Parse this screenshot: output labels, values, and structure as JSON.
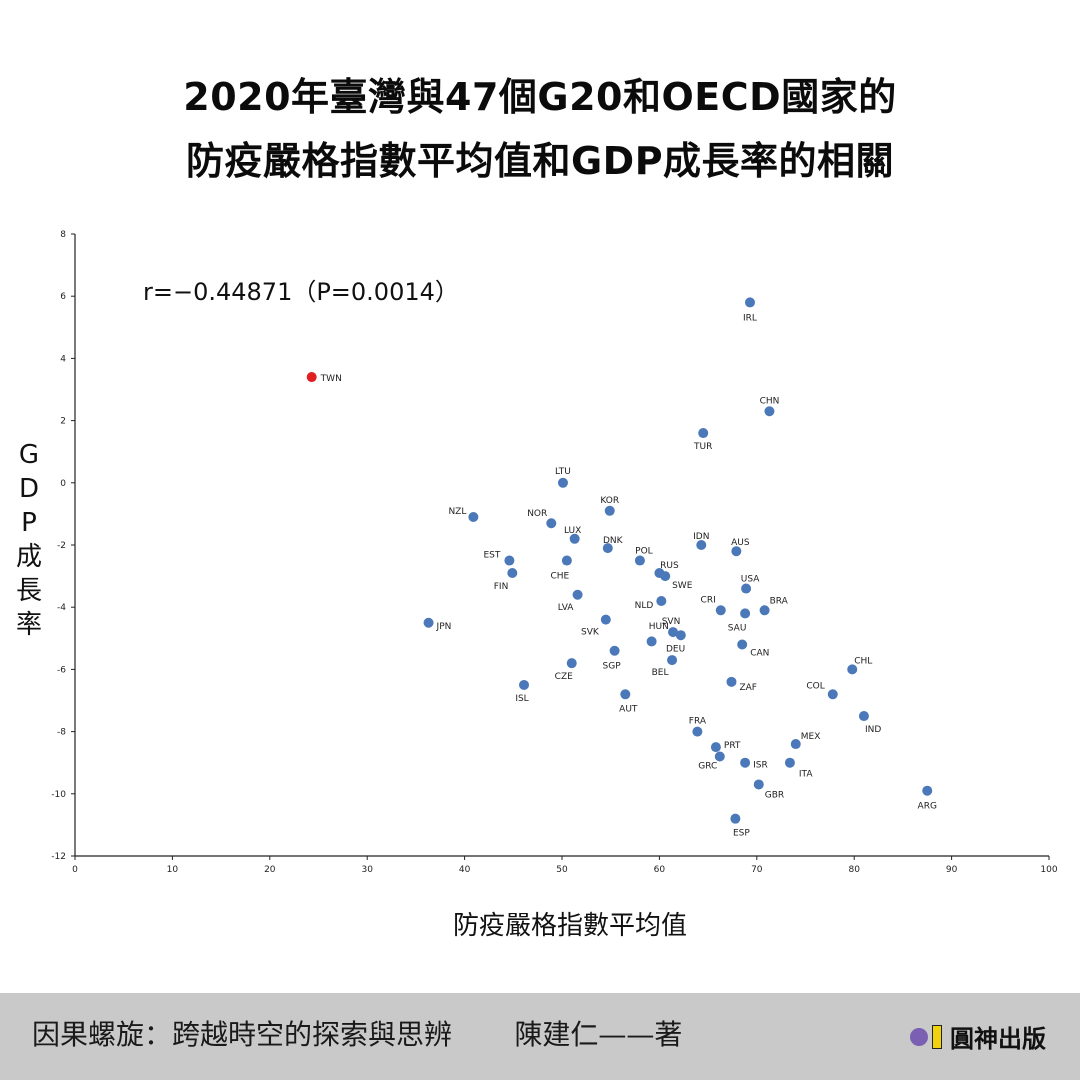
{
  "title_line1": "2020年臺灣與47個G20和OECD國家的",
  "title_line2": "防疫嚴格指數平均值和GDP成長率的相關",
  "correlation_text": "r=−0.44871（P=0.0014）",
  "footer": {
    "book_title": "因果螺旋：跨越時空的探索與思辨",
    "author": "陳建仁——著",
    "publisher": "圓神出版"
  },
  "colors": {
    "point": "#4a78b8",
    "highlight": "#e02020"
  },
  "chart_data": {
    "type": "scatter",
    "xlabel": "防疫嚴格指數平均值",
    "ylabel": "GDP成長率",
    "xlim": [
      0,
      100
    ],
    "ylim": [
      -12,
      8
    ],
    "xticks": [
      0,
      10,
      20,
      30,
      40,
      50,
      60,
      70,
      80,
      90,
      100
    ],
    "yticks": [
      8,
      6,
      4,
      2,
      0,
      -2,
      -4,
      -6,
      -8,
      -10,
      -12
    ],
    "grid": false,
    "points": [
      {
        "label": "TWN",
        "x": 24.3,
        "y": 3.4,
        "highlight": true
      },
      {
        "label": "IRL",
        "x": 69.3,
        "y": 5.8
      },
      {
        "label": "CHN",
        "x": 71.3,
        "y": 2.3
      },
      {
        "label": "TUR",
        "x": 64.5,
        "y": 1.6
      },
      {
        "label": "LTU",
        "x": 50.1,
        "y": 0.0
      },
      {
        "label": "KOR",
        "x": 54.9,
        "y": -0.9
      },
      {
        "label": "NZL",
        "x": 40.9,
        "y": -1.1
      },
      {
        "label": "NOR",
        "x": 48.9,
        "y": -1.3
      },
      {
        "label": "LUX",
        "x": 51.3,
        "y": -1.8
      },
      {
        "label": "DNK",
        "x": 54.7,
        "y": -2.1
      },
      {
        "label": "IDN",
        "x": 64.3,
        "y": -2.0
      },
      {
        "label": "AUS",
        "x": 67.9,
        "y": -2.2
      },
      {
        "label": "EST",
        "x": 44.6,
        "y": -2.5
      },
      {
        "label": "CHE",
        "x": 50.5,
        "y": -2.5
      },
      {
        "label": "POL",
        "x": 58.0,
        "y": -2.5
      },
      {
        "label": "FIN",
        "x": 44.9,
        "y": -2.9
      },
      {
        "label": "RUS",
        "x": 60.0,
        "y": -2.9
      },
      {
        "label": "SWE",
        "x": 60.6,
        "y": -3.0
      },
      {
        "label": "USA",
        "x": 68.9,
        "y": -3.4
      },
      {
        "label": "LVA",
        "x": 51.6,
        "y": -3.6
      },
      {
        "label": "NLD",
        "x": 60.2,
        "y": -3.8
      },
      {
        "label": "CRI",
        "x": 66.3,
        "y": -4.1
      },
      {
        "label": "SAU",
        "x": 68.8,
        "y": -4.2
      },
      {
        "label": "BRA",
        "x": 70.8,
        "y": -4.1
      },
      {
        "label": "JPN",
        "x": 36.3,
        "y": -4.5
      },
      {
        "label": "SVK",
        "x": 54.5,
        "y": -4.4
      },
      {
        "label": "SVN",
        "x": 61.4,
        "y": -4.8
      },
      {
        "label": "HUN",
        "x": 62.2,
        "y": -4.9
      },
      {
        "label": "DEU",
        "x": 59.2,
        "y": -5.1
      },
      {
        "label": "CAN",
        "x": 68.5,
        "y": -5.2
      },
      {
        "label": "SGP",
        "x": 55.4,
        "y": -5.4
      },
      {
        "label": "BEL",
        "x": 61.3,
        "y": -5.7
      },
      {
        "label": "CZE",
        "x": 51.0,
        "y": -5.8
      },
      {
        "label": "CHL",
        "x": 79.8,
        "y": -6.0
      },
      {
        "label": "ISL",
        "x": 46.1,
        "y": -6.5
      },
      {
        "label": "ZAF",
        "x": 67.4,
        "y": -6.4
      },
      {
        "label": "COL",
        "x": 77.8,
        "y": -6.8
      },
      {
        "label": "AUT",
        "x": 56.5,
        "y": -6.8
      },
      {
        "label": "IND",
        "x": 81.0,
        "y": -7.5
      },
      {
        "label": "FRA",
        "x": 63.9,
        "y": -8.0
      },
      {
        "label": "PRT",
        "x": 65.8,
        "y": -8.5
      },
      {
        "label": "MEX",
        "x": 74.0,
        "y": -8.4
      },
      {
        "label": "GRC",
        "x": 66.2,
        "y": -8.8
      },
      {
        "label": "ISR",
        "x": 68.8,
        "y": -9.0
      },
      {
        "label": "ITA",
        "x": 73.4,
        "y": -9.0
      },
      {
        "label": "GBR",
        "x": 70.2,
        "y": -9.7
      },
      {
        "label": "ARG",
        "x": 87.5,
        "y": -9.9
      },
      {
        "label": "ESP",
        "x": 67.8,
        "y": -10.8
      }
    ]
  }
}
